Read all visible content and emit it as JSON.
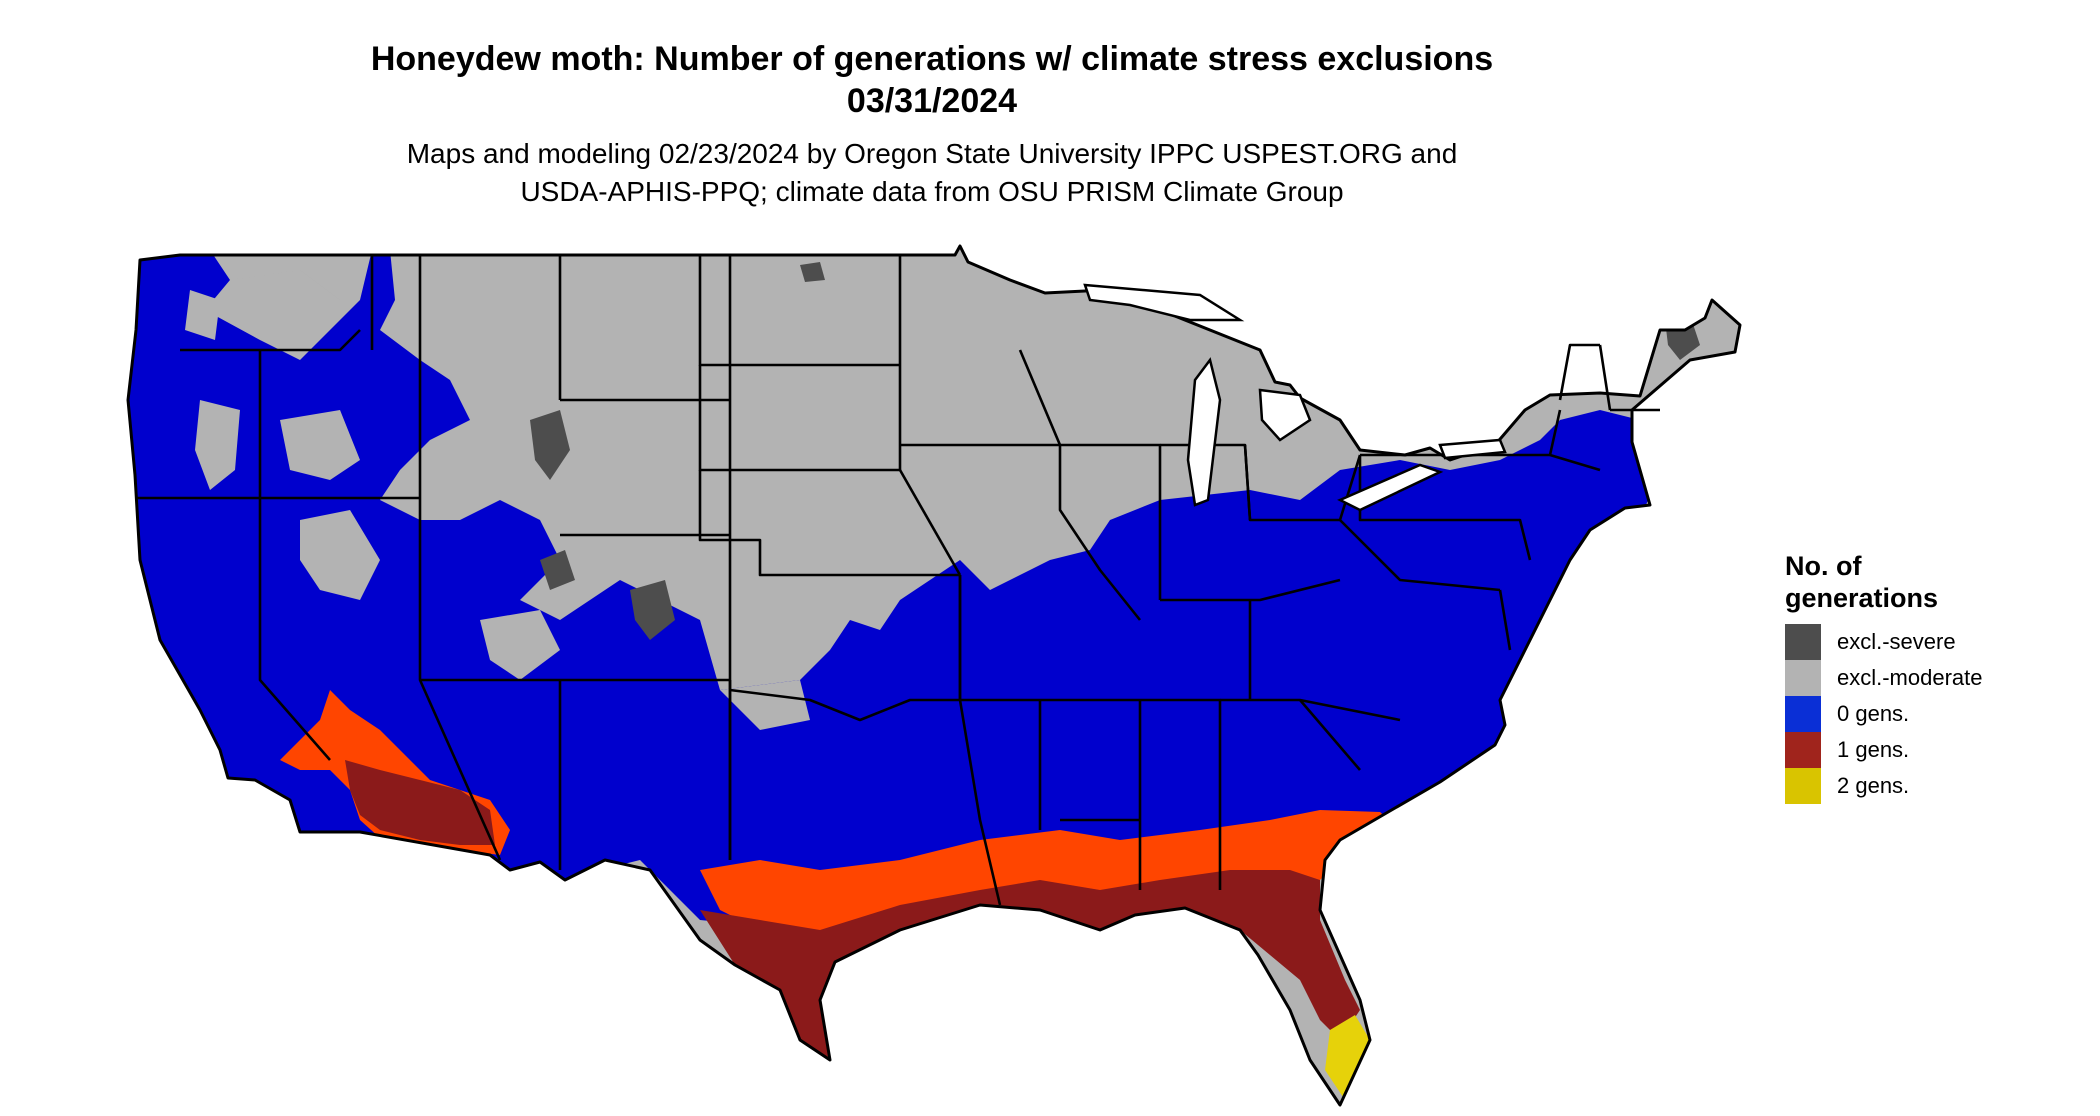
{
  "title_line1": "Honeydew moth: Number of generations w/ climate stress exclusions",
  "title_line2": "03/31/2024",
  "subtitle_line1": "Maps and modeling 02/23/2024 by Oregon State University IPPC USPEST.ORG and",
  "subtitle_line2": "USDA-APHIS-PPQ; climate data from OSU PRISM Climate Group",
  "legend": {
    "title_line1": "No. of",
    "title_line2": "generations",
    "items": [
      {
        "label": "excl.-severe",
        "color": "#4d4d4d"
      },
      {
        "label": "excl.-moderate",
        "color": "#b3b3b3"
      },
      {
        "label": "0 gens.",
        "color": "#0a2fd6"
      },
      {
        "label": "1 gens.",
        "color": "#a0241c"
      },
      {
        "label": "2 gens.",
        "color": "#d9c400"
      }
    ]
  },
  "colors": {
    "moderate": "#b3b3b3",
    "severe": "#4d4d4d",
    "zero": "#0000cd",
    "one": "#8b1a1a",
    "one_edge": "#ff4500",
    "one_mid": "#e8500a",
    "two": "#e6d20a",
    "boundary": "#000000"
  }
}
